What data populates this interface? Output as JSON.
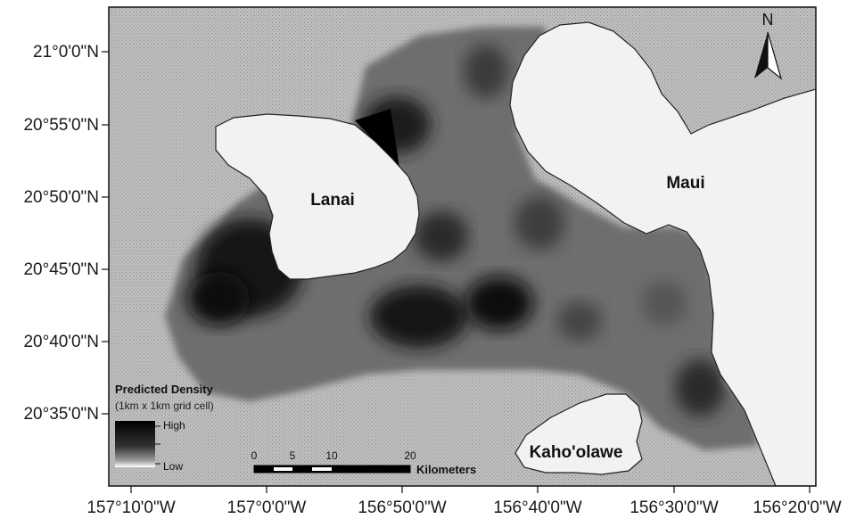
{
  "map": {
    "islands": [
      "Lanai",
      "Maui",
      "Kaho'olawe"
    ],
    "north_label": "N"
  },
  "axes": {
    "y_labels": [
      "21°0'0\"N",
      "20°55'0\"N",
      "20°50'0\"N",
      "20°45'0\"N",
      "20°40'0\"N",
      "20°35'0\"N"
    ],
    "x_labels": [
      "157°10'0\"W",
      "157°0'0\"W",
      "156°50'0\"W",
      "156°40'0\"W",
      "156°30'0\"W",
      "156°20'0\"W"
    ]
  },
  "legend": {
    "title": "Predicted Density",
    "subtitle": "(1km x 1km grid cell)",
    "high_label": "High",
    "low_label": "Low"
  },
  "scale_bar": {
    "ticks": [
      "0",
      "5",
      "10",
      "20"
    ],
    "unit": "Kilometers"
  },
  "colors": {
    "water": "#b9b9b9",
    "land": "#f2f2f2",
    "density_high": "#000000",
    "density_low": "#ffffff"
  }
}
